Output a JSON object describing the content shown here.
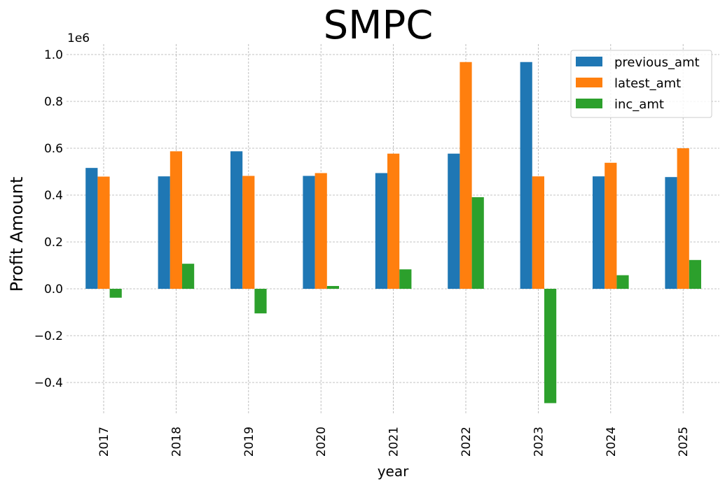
{
  "chart_data": {
    "type": "bar",
    "title": "SMPC",
    "xlabel": "year",
    "ylabel": "Profit Amount",
    "y_offset_label": "1e6",
    "categories": [
      "2017",
      "2018",
      "2019",
      "2020",
      "2021",
      "2022",
      "2023",
      "2024",
      "2025"
    ],
    "series": [
      {
        "name": "previous_amt",
        "color": "#1f77b4",
        "values": [
          0.516,
          0.48,
          0.587,
          0.482,
          0.494,
          0.577,
          0.968,
          0.48,
          0.477
        ]
      },
      {
        "name": "latest_amt",
        "color": "#ff7f0e",
        "values": [
          0.479,
          0.587,
          0.482,
          0.494,
          0.577,
          0.968,
          0.48,
          0.538,
          0.6
        ]
      },
      {
        "name": "inc_amt",
        "color": "#2ca02c",
        "values": [
          -0.038,
          0.107,
          -0.105,
          0.012,
          0.083,
          0.391,
          -0.488,
          0.058,
          0.123
        ]
      }
    ],
    "yticks": [
      "−0.4",
      "−0.2",
      "0.0",
      "0.2",
      "0.4",
      "0.6",
      "0.8",
      "1.0"
    ],
    "ytick_values": [
      -0.4,
      -0.2,
      0.0,
      0.2,
      0.4,
      0.6,
      0.8,
      1.0
    ],
    "ylim": [
      -0.56,
      1.04
    ],
    "grid": true,
    "legend_position": "top-right"
  }
}
